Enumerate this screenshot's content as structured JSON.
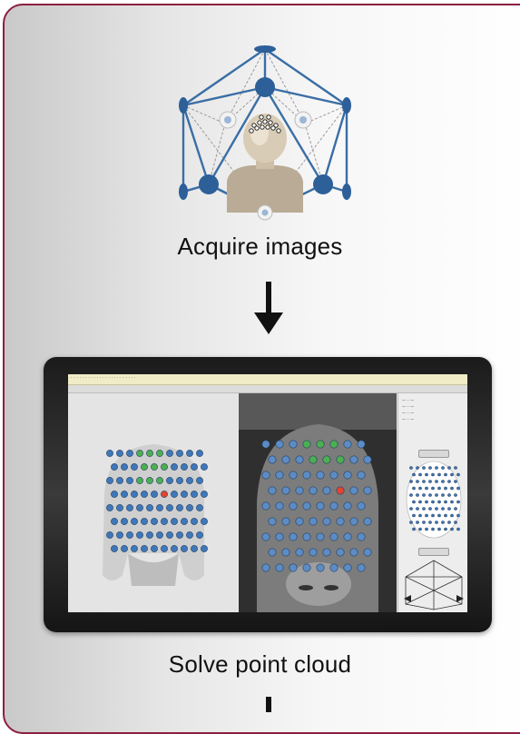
{
  "steps": [
    {
      "label": "Acquire images",
      "illustration": "camera-rig-around-mannequin-head"
    },
    {
      "label": "Solve point cloud",
      "illustration": "software-screenshot-electrode-solver"
    }
  ],
  "arrow_icon": "down-arrow-icon",
  "colors": {
    "panel_border": "#8b1f3f",
    "rig_lines": "#3a6ea5",
    "electrode_blue": "#3f77b8",
    "electrode_green": "#4caf50",
    "electrode_red": "#e0452f"
  }
}
